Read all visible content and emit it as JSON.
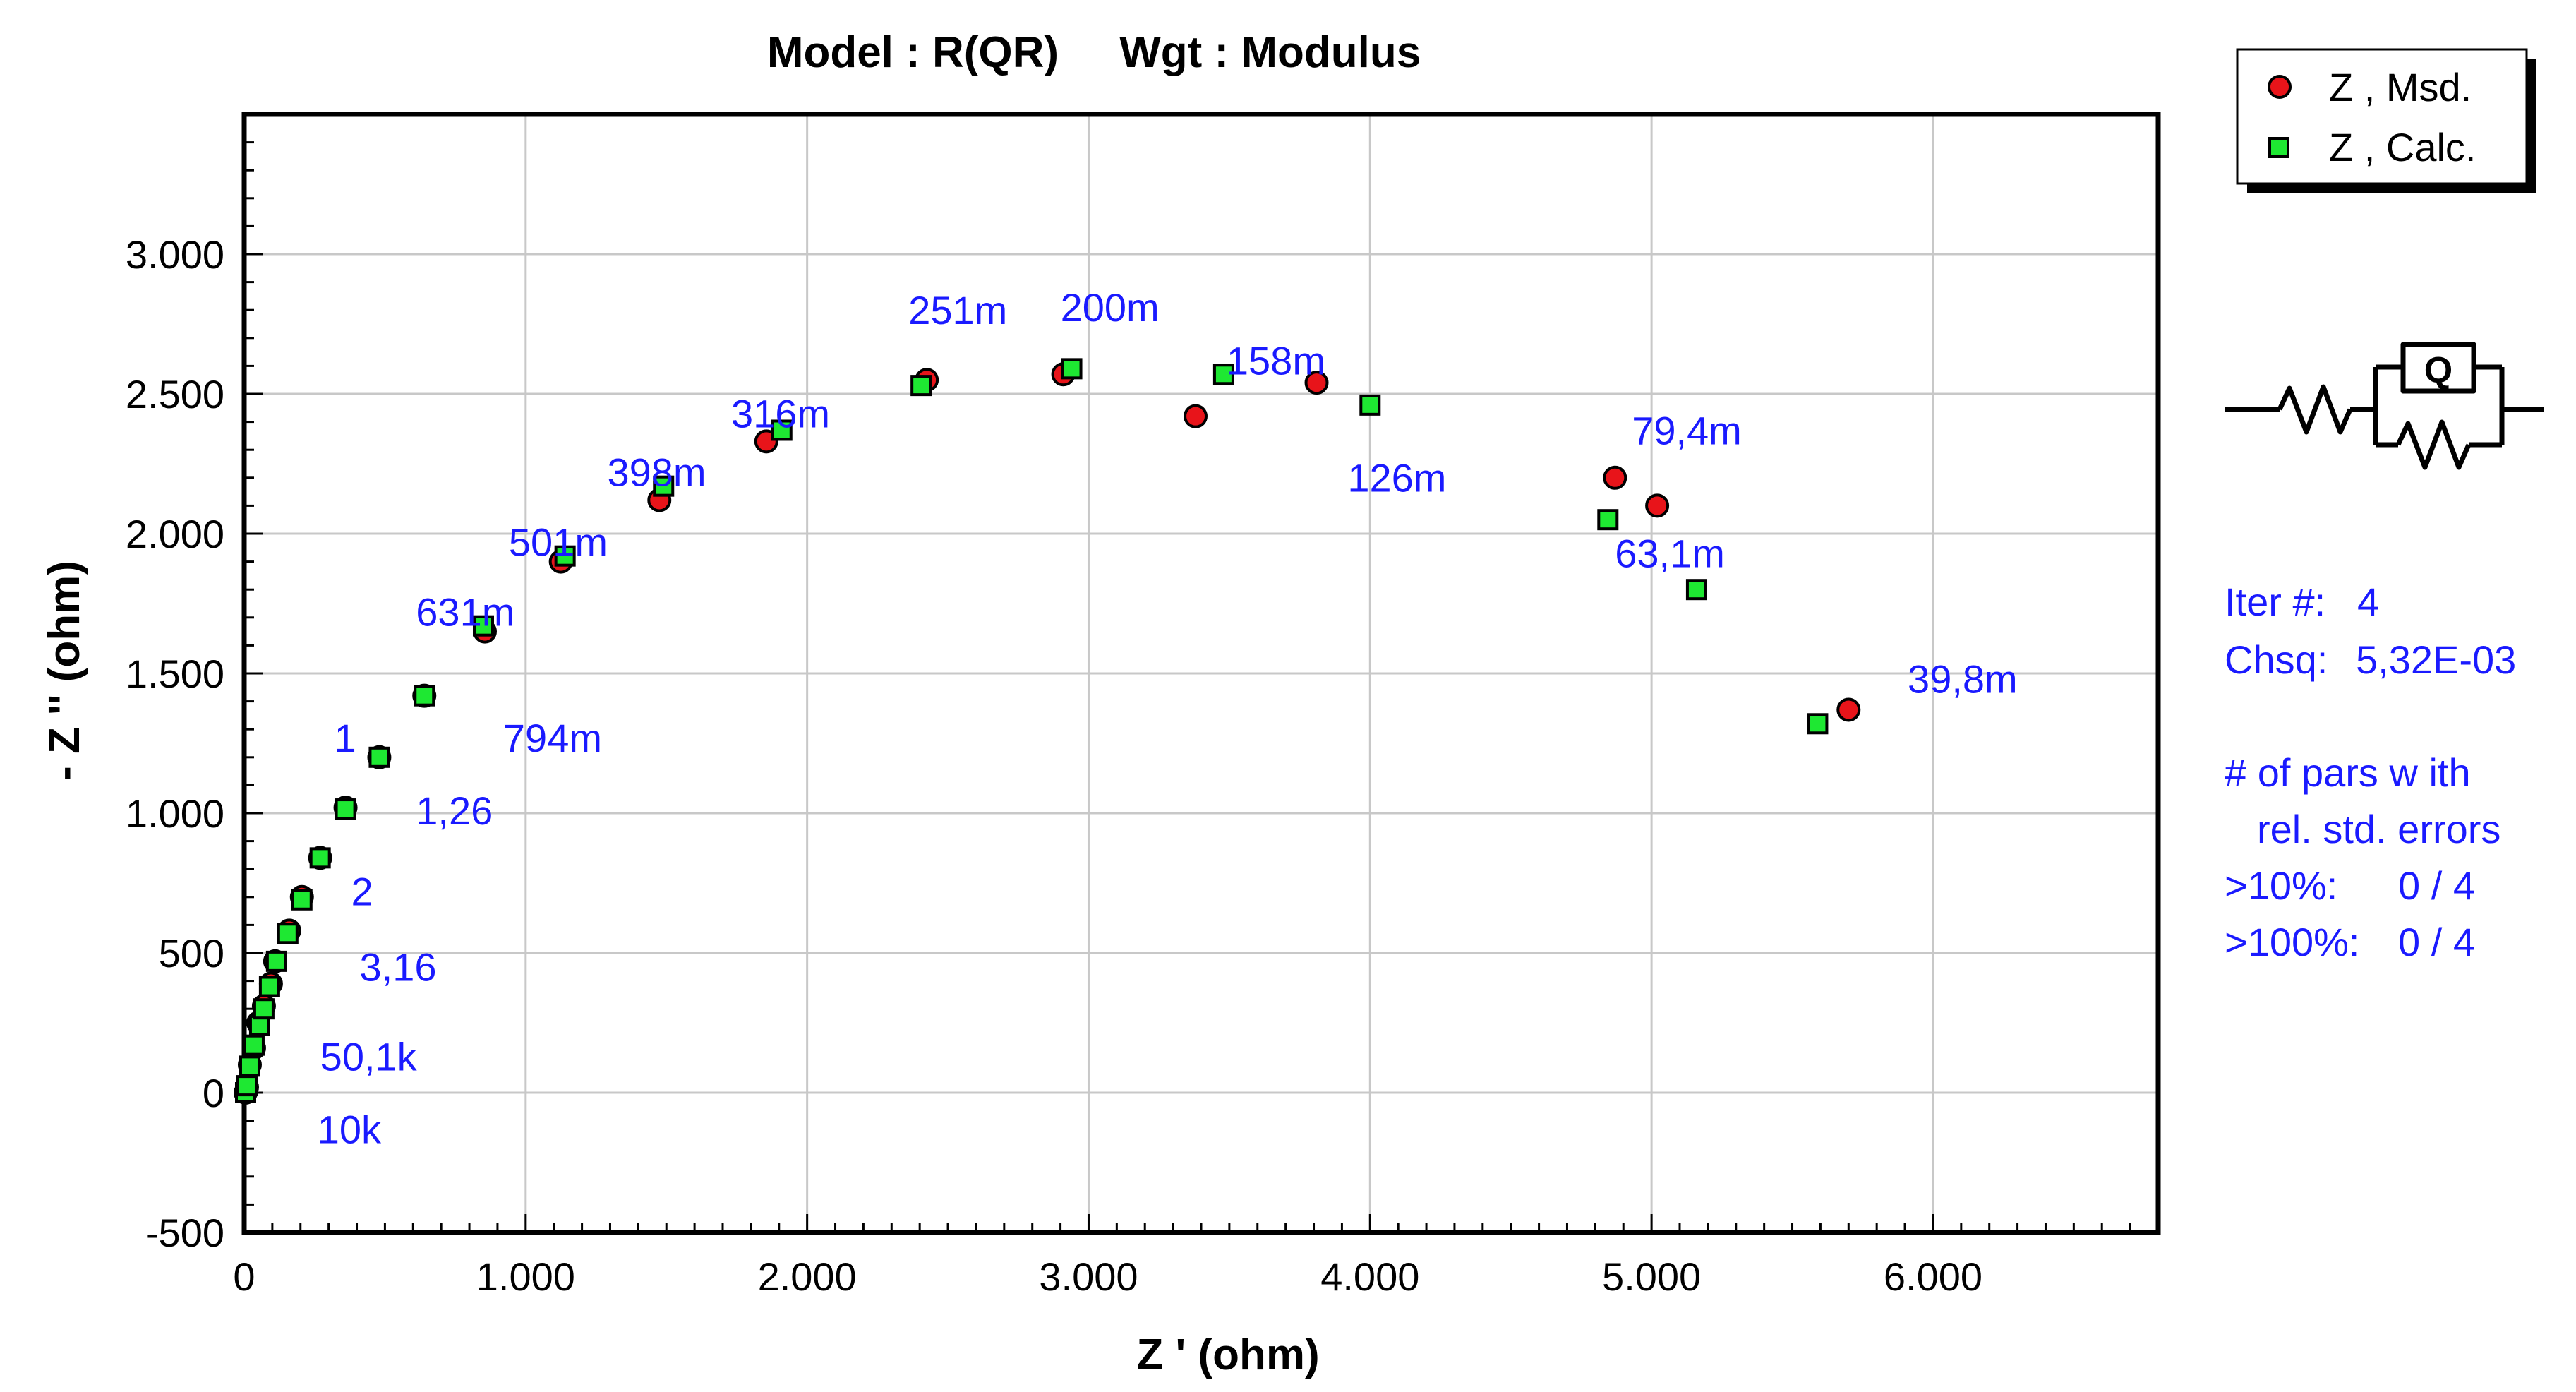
{
  "chart_data": {
    "type": "scatter",
    "title": "Model : R(QR)     Wgt : Modulus",
    "xlabel": "Z ' (ohm)",
    "ylabel": "- Z '' (ohm)",
    "xlim": [
      0,
      6800
    ],
    "ylim": [
      -500,
      3500
    ],
    "xticks": [
      0,
      1000,
      2000,
      3000,
      4000,
      5000,
      6000
    ],
    "yticks": [
      -500,
      0,
      500,
      1000,
      1500,
      2000,
      2500,
      3000
    ],
    "xtick_labels": [
      "0",
      "1.000",
      "2.000",
      "3.000",
      "4.000",
      "5.000",
      "6.000"
    ],
    "ytick_labels": [
      "-500",
      "0",
      "500",
      "1.000",
      "1.500",
      "2.000",
      "2.500",
      "3.000"
    ],
    "grid": true,
    "legend_position": "top-right",
    "series": [
      {
        "name": "Z , Msd.",
        "marker": "circle",
        "color": "#e8141a",
        "points": [
          [
            5,
            0
          ],
          [
            10,
            20
          ],
          [
            20,
            100
          ],
          [
            35,
            160
          ],
          [
            50,
            250
          ],
          [
            70,
            310
          ],
          [
            95,
            390
          ],
          [
            110,
            470
          ],
          [
            160,
            580
          ],
          [
            205,
            700
          ],
          [
            270,
            840
          ],
          [
            360,
            1020
          ],
          [
            480,
            1200
          ],
          [
            640,
            1420
          ],
          [
            855,
            1650
          ],
          [
            1125,
            1900
          ],
          [
            1475,
            2120
          ],
          [
            1855,
            2330
          ],
          [
            2425,
            2550
          ],
          [
            2910,
            2570
          ],
          [
            3380,
            2420
          ],
          [
            3810,
            2540
          ],
          [
            4870,
            2200
          ],
          [
            5020,
            2100
          ],
          [
            5700,
            1370
          ]
        ]
      },
      {
        "name": "Z , Calc.",
        "marker": "square",
        "color": "#1ee832",
        "points": [
          [
            5,
            0
          ],
          [
            10,
            25
          ],
          [
            20,
            95
          ],
          [
            35,
            170
          ],
          [
            55,
            240
          ],
          [
            70,
            300
          ],
          [
            90,
            380
          ],
          [
            115,
            470
          ],
          [
            155,
            570
          ],
          [
            205,
            690
          ],
          [
            270,
            840
          ],
          [
            360,
            1015
          ],
          [
            480,
            1200
          ],
          [
            640,
            1420
          ],
          [
            850,
            1670
          ],
          [
            1140,
            1920
          ],
          [
            1490,
            2170
          ],
          [
            1910,
            2370
          ],
          [
            2405,
            2530
          ],
          [
            2940,
            2590
          ],
          [
            3480,
            2570
          ],
          [
            4000,
            2460
          ],
          [
            4845,
            2050
          ],
          [
            5160,
            1800
          ],
          [
            5590,
            1320
          ]
        ]
      }
    ],
    "annotations": [
      {
        "text": "251m",
        "x": 2360,
        "y": 2750
      },
      {
        "text": "200m",
        "x": 2900,
        "y": 2760
      },
      {
        "text": "158m",
        "x": 3490,
        "y": 2570
      },
      {
        "text": "316m",
        "x": 1730,
        "y": 2380
      },
      {
        "text": "398m",
        "x": 1290,
        "y": 2170
      },
      {
        "text": "126m",
        "x": 3920,
        "y": 2150
      },
      {
        "text": "79,4m",
        "x": 4930,
        "y": 2320
      },
      {
        "text": "501m",
        "x": 940,
        "y": 1920
      },
      {
        "text": "63,1m",
        "x": 4870,
        "y": 1880
      },
      {
        "text": "631m",
        "x": 610,
        "y": 1670
      },
      {
        "text": "39,8m",
        "x": 5910,
        "y": 1430
      },
      {
        "text": "1",
        "x": 320,
        "y": 1220
      },
      {
        "text": "794m",
        "x": 920,
        "y": 1220
      },
      {
        "text": "1,26",
        "x": 610,
        "y": 960
      },
      {
        "text": "2",
        "x": 380,
        "y": 670
      },
      {
        "text": "3,16",
        "x": 410,
        "y": 400
      },
      {
        "text": "50,1k",
        "x": 270,
        "y": 80
      },
      {
        "text": "10k",
        "x": 260,
        "y": -180
      }
    ]
  },
  "info_panel": {
    "iter_label": "Iter #:",
    "iter_value": "4",
    "chsq_label": "Chsq:",
    "chsq_value": "5,32E-03",
    "pars_line1": "# of pars w ith",
    "pars_line2": "rel. std. errors",
    "row1_label": ">10%:",
    "row1_value": "0 / 4",
    "row2_label": ">100%:",
    "row2_value": "0 / 4"
  },
  "circuit": {
    "cpe_label": "Q"
  },
  "colors": {
    "measured": "#e8141a",
    "calculated": "#1ee832",
    "annotation": "#1a1aff"
  }
}
